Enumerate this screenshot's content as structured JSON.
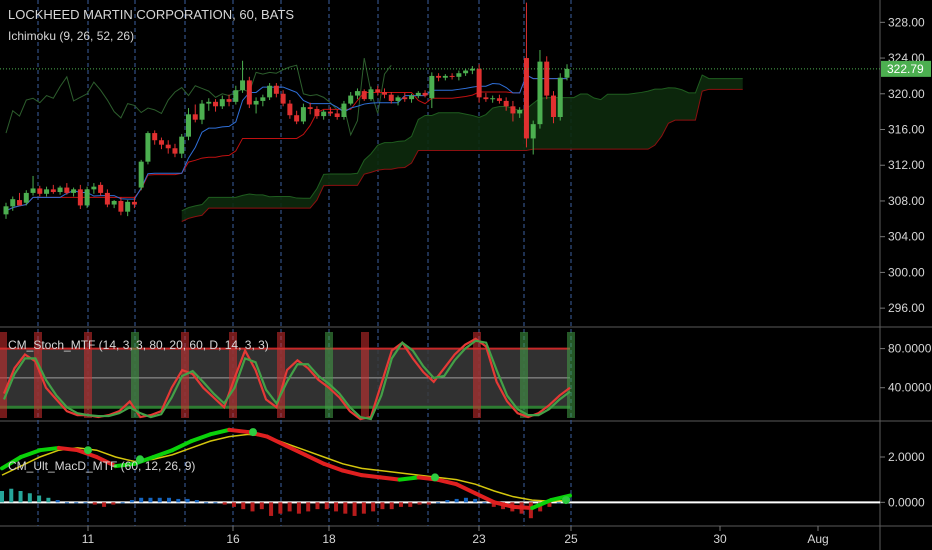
{
  "header": {
    "title": "LOCKHEED MARTIN CORPORATION, 60, BATS",
    "indicator": "Ichimoku (9, 26, 52, 26)"
  },
  "price_badge": {
    "value": "322.79",
    "color": "#4caf50"
  },
  "colors": {
    "up": "#4caf50",
    "down": "#e03030",
    "tenkan": "#2f6fd8",
    "kijun": "#c01010",
    "cloud": "#0d2a0d",
    "macd_up": "#0a8f0a",
    "macd_down": "#c00000"
  },
  "chart_data": [
    {
      "type": "candlestick",
      "title": "LOCKHEED MARTIN CORPORATION, 60, BATS",
      "x_ticks": [
        "11",
        "16",
        "18",
        "23",
        "25",
        "30",
        "Aug"
      ],
      "y_ticks": [
        "296.00",
        "300.00",
        "304.00",
        "308.00",
        "312.00",
        "316.00",
        "320.00",
        "324.00",
        "328.00"
      ],
      "ylim": [
        294.0,
        330.5
      ],
      "last_price": 322.79,
      "candles_ohlc": [
        [
          306.5,
          307.8,
          306.0,
          307.4
        ],
        [
          307.4,
          308.5,
          306.9,
          308.2
        ],
        [
          308.1,
          308.9,
          307.6,
          307.5
        ],
        [
          307.8,
          309.2,
          307.5,
          308.9
        ],
        [
          308.9,
          310.8,
          308.6,
          309.4
        ],
        [
          309.4,
          309.7,
          308.5,
          308.8
        ],
        [
          308.8,
          309.6,
          308.5,
          309.3
        ],
        [
          309.3,
          309.8,
          308.8,
          309.0
        ],
        [
          309.0,
          309.7,
          308.7,
          309.5
        ],
        [
          309.5,
          310.0,
          308.7,
          308.9
        ],
        [
          308.9,
          309.5,
          308.5,
          309.3
        ],
        [
          309.3,
          309.8,
          307.1,
          307.5
        ],
        [
          307.5,
          309.6,
          307.2,
          309.3
        ],
        [
          309.3,
          310.0,
          308.8,
          309.6
        ],
        [
          309.8,
          310.1,
          308.6,
          308.9
        ],
        [
          308.9,
          309.3,
          307.3,
          307.6
        ],
        [
          307.6,
          308.1,
          307.2,
          308.0
        ],
        [
          308.0,
          308.4,
          306.4,
          306.8
        ],
        [
          306.8,
          308.1,
          306.3,
          307.9
        ],
        [
          307.9,
          308.4,
          307.2,
          307.6
        ],
        [
          309.5,
          312.6,
          309.2,
          312.4
        ],
        [
          312.4,
          315.8,
          312.1,
          315.6
        ],
        [
          315.6,
          315.9,
          314.3,
          314.8
        ],
        [
          314.8,
          315.1,
          313.8,
          314.3
        ],
        [
          314.3,
          314.8,
          313.3,
          313.9
        ],
        [
          313.9,
          314.4,
          312.9,
          313.3
        ],
        [
          313.3,
          315.5,
          312.8,
          315.2
        ],
        [
          315.2,
          318.4,
          314.8,
          317.7
        ],
        [
          317.7,
          318.8,
          316.8,
          317.1
        ],
        [
          317.1,
          319.3,
          316.6,
          318.9
        ],
        [
          318.9,
          319.5,
          318.1,
          319.1
        ],
        [
          319.1,
          319.4,
          318.0,
          318.6
        ],
        [
          318.6,
          319.8,
          318.3,
          319.4
        ],
        [
          319.4,
          319.9,
          318.6,
          319.1
        ],
        [
          319.1,
          320.9,
          318.8,
          320.4
        ],
        [
          320.4,
          323.7,
          320.1,
          321.5
        ],
        [
          321.5,
          321.9,
          318.4,
          318.8
        ],
        [
          318.8,
          319.6,
          317.8,
          319.2
        ],
        [
          319.2,
          319.9,
          318.6,
          319.6
        ],
        [
          319.6,
          321.2,
          319.3,
          320.9
        ],
        [
          320.9,
          321.2,
          319.6,
          320.0
        ],
        [
          320.0,
          320.4,
          318.6,
          318.9
        ],
        [
          318.9,
          319.3,
          317.2,
          317.6
        ],
        [
          317.6,
          318.1,
          316.6,
          316.9
        ],
        [
          316.9,
          318.9,
          316.6,
          318.5
        ],
        [
          318.5,
          319.0,
          317.7,
          318.3
        ],
        [
          318.3,
          318.6,
          317.2,
          317.5
        ],
        [
          317.5,
          318.2,
          317.1,
          318.0
        ],
        [
          318.0,
          318.5,
          317.5,
          317.8
        ],
        [
          317.8,
          318.2,
          317.1,
          317.4
        ],
        [
          317.4,
          319.2,
          317.1,
          318.9
        ],
        [
          318.9,
          320.2,
          318.7,
          319.8
        ],
        [
          319.8,
          320.6,
          319.4,
          320.3
        ],
        [
          320.3,
          320.5,
          319.2,
          319.4
        ],
        [
          319.4,
          320.8,
          319.2,
          320.5
        ],
        [
          320.5,
          320.9,
          319.8,
          320.2
        ],
        [
          320.2,
          320.6,
          319.5,
          319.9
        ],
        [
          319.9,
          320.2,
          318.9,
          319.2
        ],
        [
          319.2,
          319.8,
          318.7,
          319.6
        ],
        [
          319.6,
          320.1,
          319.1,
          319.4
        ],
        [
          319.4,
          320.0,
          319.0,
          319.8
        ],
        [
          319.8,
          320.3,
          319.5,
          320.1
        ],
        [
          320.1,
          320.4,
          319.6,
          319.8
        ],
        [
          319.5,
          322.4,
          318.4,
          322.0
        ],
        [
          322.0,
          322.3,
          321.4,
          321.8
        ],
        [
          321.8,
          322.2,
          321.5,
          322.0
        ],
        [
          322.0,
          322.3,
          321.6,
          321.9
        ],
        [
          321.9,
          322.6,
          321.5,
          322.3
        ],
        [
          322.3,
          322.8,
          322.0,
          322.6
        ],
        [
          322.6,
          323.1,
          322.2,
          322.8
        ],
        [
          322.8,
          323.3,
          319.0,
          319.6
        ],
        [
          319.6,
          320.1,
          319.1,
          319.4
        ],
        [
          319.4,
          319.8,
          319.0,
          319.5
        ],
        [
          319.5,
          319.9,
          318.9,
          319.2
        ],
        [
          319.2,
          319.6,
          318.1,
          318.6
        ],
        [
          318.6,
          319.2,
          316.9,
          317.8
        ],
        [
          317.8,
          318.5,
          317.3,
          318.2
        ],
        [
          324.0,
          330.2,
          314.0,
          315.0
        ],
        [
          315.0,
          317.0,
          313.2,
          316.6
        ],
        [
          316.6,
          324.9,
          316.1,
          323.6
        ],
        [
          323.6,
          324.2,
          319.4,
          319.8
        ],
        [
          319.8,
          320.3,
          316.7,
          317.4
        ],
        [
          317.4,
          322.3,
          317.0,
          321.8
        ],
        [
          321.8,
          323.3,
          321.5,
          322.79
        ]
      ]
    },
    {
      "type": "line",
      "title": "CM_Stoch_MTF (14, 3, 3, 80, 20, 60, D, 14, 3, 3)",
      "y_ticks": [
        "40.0000",
        "80.0000"
      ],
      "ylim": [
        7,
        99
      ],
      "bands": [
        20,
        50,
        80
      ],
      "series": [
        {
          "color": "#e53935",
          "values": [
            34,
            60,
            74,
            67,
            40,
            28,
            16,
            12,
            12,
            10,
            12,
            16,
            26,
            10,
            12,
            16,
            40,
            58,
            54,
            40,
            30,
            20,
            50,
            78,
            58,
            28,
            20,
            58,
            68,
            60,
            48,
            40,
            30,
            16,
            8,
            10,
            44,
            78,
            86,
            70,
            56,
            46,
            60,
            74,
            84,
            90,
            82,
            46,
            26,
            14,
            10,
            14,
            22,
            32,
            40
          ]
        },
        {
          "color": "#43a047",
          "values": [
            28,
            54,
            70,
            70,
            48,
            32,
            20,
            14,
            12,
            11,
            11,
            14,
            20,
            14,
            10,
            13,
            30,
            52,
            57,
            46,
            34,
            24,
            40,
            70,
            66,
            38,
            24,
            46,
            64,
            64,
            52,
            44,
            34,
            20,
            10,
            8,
            32,
            70,
            86,
            78,
            62,
            50,
            52,
            68,
            80,
            88,
            86,
            58,
            32,
            18,
            12,
            12,
            18,
            28,
            36
          ]
        }
      ]
    },
    {
      "type": "line",
      "title": "CM_Ult_MacD_MTF (60, 12, 26, 9)",
      "y_ticks": [
        "0.0000",
        "2.0000"
      ],
      "ylim": [
        -1.0,
        3.5
      ],
      "series": [
        {
          "color": "#d4c60d",
          "values": [
            1.2,
            1.6,
            2.0,
            2.3,
            2.4,
            2.3,
            2.0,
            1.8,
            1.9,
            2.1,
            2.4,
            2.7,
            2.9,
            3.0,
            2.9,
            2.6,
            2.3,
            2.0,
            1.7,
            1.5,
            1.4,
            1.3,
            1.2,
            1.1,
            1.0,
            0.8,
            0.5,
            0.25,
            0.1,
            0.05,
            0.1
          ]
        },
        {
          "color": "#e02020",
          "values": [
            1.5,
            2.0,
            2.3,
            2.4,
            2.3,
            2.0,
            1.6,
            1.7,
            2.0,
            2.3,
            2.7,
            3.0,
            3.2,
            3.1,
            2.9,
            2.5,
            2.1,
            1.7,
            1.4,
            1.2,
            1.1,
            1.0,
            1.1,
            1.0,
            0.8,
            0.4,
            0.0,
            -0.2,
            -0.25,
            0.1,
            0.3
          ]
        },
        {
          "color": "#e53935",
          "values": [
            0.5,
            0.6,
            0.5,
            0.4,
            0.3,
            0.2,
            0.1,
            0.0,
            0.0,
            0.0,
            -0.1,
            -0.2,
            -0.1,
            0.0,
            0.1,
            0.2,
            0.2,
            0.2,
            0.2,
            0.15,
            0.15,
            0.1,
            0.0,
            0.0,
            -0.1,
            -0.2,
            -0.3,
            -0.4,
            -0.3,
            -0.6,
            -0.5,
            -0.4,
            -0.5,
            -0.4,
            -0.3,
            -0.3,
            -0.4,
            -0.5,
            -0.6,
            -0.5,
            -0.4,
            -0.3,
            -0.3,
            -0.2,
            -0.2,
            -0.1,
            -0.1,
            0.0,
            0.1,
            0.15,
            0.2,
            0.15,
            0.0,
            -0.2,
            -0.3,
            -0.4,
            -0.5,
            -0.7,
            -0.4,
            -0.2,
            0.0,
            0.2
          ]
        }
      ]
    }
  ]
}
